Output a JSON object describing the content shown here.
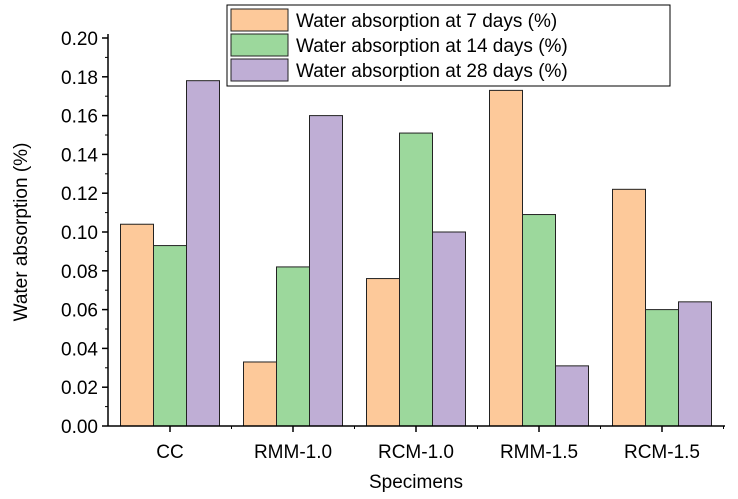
{
  "chart_data": {
    "type": "bar",
    "title": "",
    "xlabel": "Specimens",
    "ylabel": "Water absorption (%)",
    "ylim": [
      0,
      0.2
    ],
    "yticks": [
      "0.00",
      "0.02",
      "0.04",
      "0.06",
      "0.08",
      "0.10",
      "0.12",
      "0.14",
      "0.16",
      "0.18",
      "0.20"
    ],
    "categories": [
      "CC",
      "RMM-1.0",
      "RCM-1.0",
      "RMM-1.5",
      "RCM-1.5"
    ],
    "series": [
      {
        "name": "Water absorption at 7 days (%)",
        "color": "#FDC99A",
        "values": [
          0.104,
          0.033,
          0.076,
          0.173,
          0.122
        ]
      },
      {
        "name": "Water absorption at 14 days (%)",
        "color": "#9CD89C",
        "values": [
          0.093,
          0.082,
          0.151,
          0.109,
          0.06
        ]
      },
      {
        "name": "Water absorption at 28 days (%)",
        "color": "#BFAED5",
        "values": [
          0.178,
          0.16,
          0.1,
          0.031,
          0.064
        ]
      }
    ],
    "legend": "top-right",
    "grid": false
  }
}
